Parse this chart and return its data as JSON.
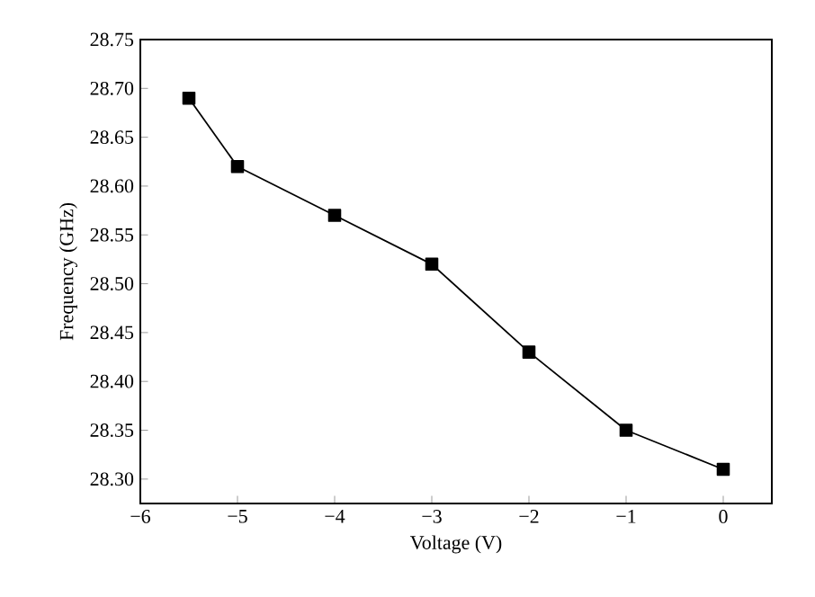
{
  "chart_data": {
    "type": "line",
    "xlabel": "Voltage (V)",
    "ylabel": "Frequency (GHz)",
    "x": [
      -5.5,
      -5,
      -4,
      -3,
      -2,
      -1,
      0
    ],
    "series": [
      {
        "color": "#000000",
        "values": [
          28.69,
          28.62,
          28.57,
          28.52,
          28.43,
          28.35,
          28.31
        ]
      }
    ],
    "xlim": [
      -6,
      0.5
    ],
    "ylim": [
      28.275,
      28.75
    ],
    "xticks": [
      {
        "value": -6,
        "label": "−6"
      },
      {
        "value": -5,
        "label": "−5"
      },
      {
        "value": -4,
        "label": "−4"
      },
      {
        "value": -3,
        "label": "−3"
      },
      {
        "value": -2,
        "label": "−2"
      },
      {
        "value": -1,
        "label": "−1"
      },
      {
        "value": 0,
        "label": "0"
      }
    ],
    "yticks": [
      {
        "value": 28.3,
        "label": "28.30"
      },
      {
        "value": 28.35,
        "label": "28.35"
      },
      {
        "value": 28.4,
        "label": "28.40"
      },
      {
        "value": 28.45,
        "label": "28.45"
      },
      {
        "value": 28.5,
        "label": "28.50"
      },
      {
        "value": 28.55,
        "label": "28.55"
      },
      {
        "value": 28.6,
        "label": "28.60"
      },
      {
        "value": 28.65,
        "label": "28.65"
      },
      {
        "value": 28.7,
        "label": "28.70"
      },
      {
        "value": 28.75,
        "label": "28.75"
      }
    ],
    "marker": "square",
    "line_style": "solid"
  }
}
